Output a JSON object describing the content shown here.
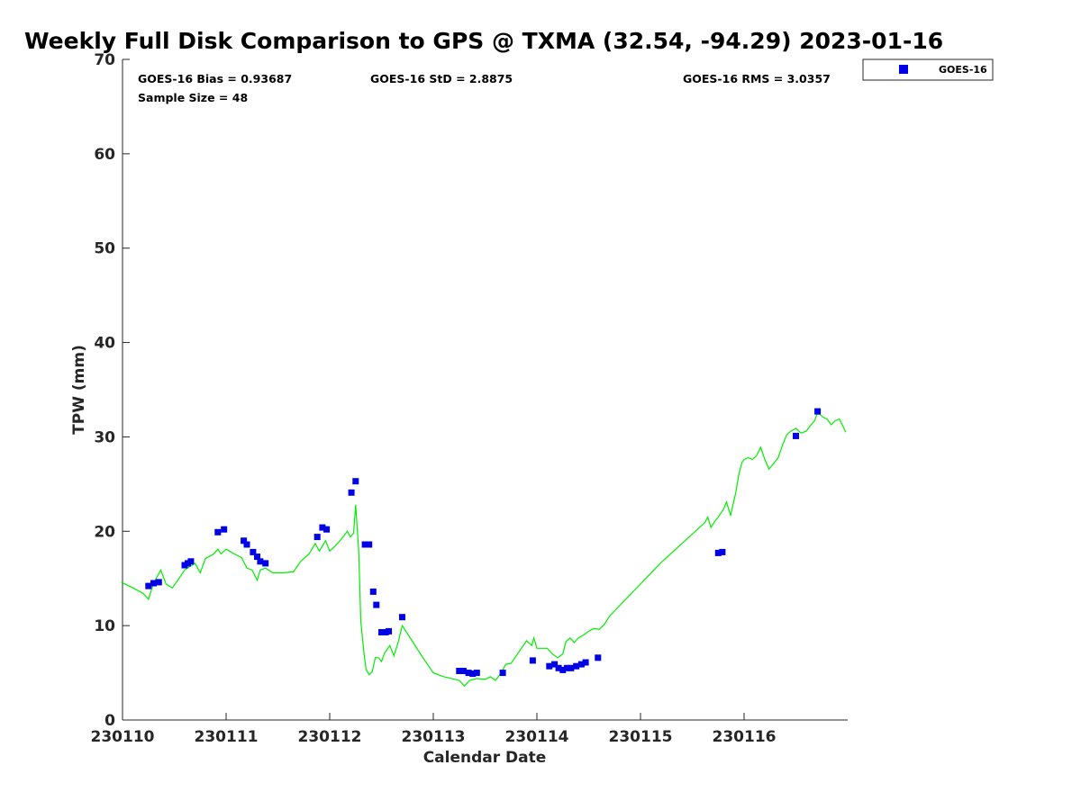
{
  "chart_data": {
    "type": "scatter",
    "title": "Weekly Full Disk Comparison to GPS @ TXMA (32.54, -94.29) 2023-01-16",
    "xlabel": "Calendar Date",
    "ylabel": "TPW (mm)",
    "xlim": [
      230110,
      230117
    ],
    "ylim": [
      0,
      70
    ],
    "x_ticks": [
      230110,
      230111,
      230112,
      230113,
      230114,
      230115,
      230116
    ],
    "x_tick_labels": [
      "230110",
      "230111",
      "230112",
      "230113",
      "230114",
      "230115",
      "230116"
    ],
    "y_ticks": [
      0,
      10,
      20,
      30,
      40,
      50,
      60,
      70
    ],
    "y_tick_labels": [
      "0",
      "10",
      "20",
      "30",
      "40",
      "50",
      "60",
      "70"
    ],
    "grid": false,
    "legend_position": "top-right outside",
    "stats": {
      "bias": "GOES-16 Bias = 0.93687",
      "std": "GOES-16 StD = 2.8875",
      "rms": "GOES-16 RMS = 3.0357",
      "sample": "Sample Size = 48"
    },
    "series": [
      {
        "name": "GOES-16",
        "kind": "points",
        "color": "#0000e6",
        "x": [
          230110.25,
          230110.3,
          230110.35,
          230110.6,
          230110.63,
          230110.66,
          230110.92,
          230110.98,
          230111.17,
          230111.2,
          230111.26,
          230111.3,
          230111.33,
          230111.38,
          230111.88,
          230111.93,
          230111.97,
          230112.21,
          230112.25,
          230112.34,
          230112.38,
          230112.42,
          230112.45,
          230112.5,
          230112.54,
          230112.57,
          230112.7,
          230113.25,
          230113.29,
          230113.34,
          230113.38,
          230113.42,
          230113.67,
          230113.96,
          230114.12,
          230114.17,
          230114.21,
          230114.25,
          230114.29,
          230114.33,
          230114.38,
          230114.43,
          230114.47,
          230114.59,
          230115.75,
          230115.79,
          230116.5,
          230116.71
        ],
        "y": [
          14.2,
          14.5,
          14.6,
          16.4,
          16.6,
          16.8,
          19.9,
          20.2,
          19.0,
          18.6,
          17.8,
          17.3,
          16.8,
          16.6,
          19.4,
          20.4,
          20.2,
          24.1,
          25.3,
          18.6,
          18.6,
          13.6,
          12.2,
          9.3,
          9.3,
          9.4,
          10.9,
          5.2,
          5.2,
          5.0,
          4.9,
          5.0,
          5.0,
          6.3,
          5.7,
          5.9,
          5.5,
          5.3,
          5.5,
          5.5,
          5.7,
          5.9,
          6.1,
          6.6,
          17.7,
          17.8,
          30.1,
          32.7
        ]
      },
      {
        "name": "",
        "kind": "line",
        "color": "#00ee00",
        "x": [
          230109.99,
          230110.1,
          230110.2,
          230110.25,
          230110.3,
          230110.37,
          230110.42,
          230110.48,
          230110.52,
          230110.6,
          230110.7,
          230110.75,
          230110.8,
          230110.88,
          230110.92,
          230110.95,
          230110.98,
          230111.0,
          230111.08,
          230111.15,
          230111.2,
          230111.25,
          230111.3,
          230111.33,
          230111.38,
          230111.45,
          230111.55,
          230111.65,
          230111.72,
          230111.8,
          230111.86,
          230111.9,
          230111.96,
          230112.0,
          230112.05,
          230112.1,
          230112.17,
          230112.2,
          230112.23,
          230112.25,
          230112.28,
          230112.3,
          230112.33,
          230112.35,
          230112.38,
          230112.41,
          230112.44,
          230112.47,
          230112.5,
          230112.53,
          230112.58,
          230112.62,
          230112.66,
          230112.7,
          230112.8,
          230112.9,
          230113.0,
          230113.1,
          230113.25,
          230113.3,
          230113.35,
          230113.42,
          230113.5,
          230113.55,
          230113.6,
          230113.65,
          230113.7,
          230113.75,
          230113.85,
          230113.9,
          230113.95,
          230113.97,
          230114.0,
          230114.1,
          230114.15,
          230114.2,
          230114.25,
          230114.28,
          230114.32,
          230114.36,
          230114.4,
          230114.45,
          230114.5,
          230114.55,
          230114.6,
          230114.65,
          230114.7,
          230115.2,
          230115.62,
          230115.65,
          230115.68,
          230115.72,
          230115.75,
          230115.78,
          230115.8,
          230115.83,
          230115.87,
          230115.92,
          230115.95,
          230115.98,
          230116.0,
          230116.04,
          230116.08,
          230116.12,
          230116.16,
          230116.2,
          230116.24,
          230116.28,
          230116.33,
          230116.37,
          230116.41,
          230116.45,
          230116.5,
          230116.55,
          230116.6,
          230116.64,
          230116.68,
          230116.71,
          230116.76,
          230116.8,
          230116.84,
          230116.88,
          230116.92,
          230116.96,
          230116.98
        ],
        "y": [
          14.6,
          14.0,
          13.4,
          12.8,
          14.5,
          15.9,
          14.4,
          14.0,
          14.6,
          15.9,
          16.6,
          15.6,
          17.1,
          17.6,
          18.1,
          17.6,
          17.9,
          18.1,
          17.6,
          17.2,
          16.1,
          15.9,
          14.8,
          15.9,
          16.1,
          15.6,
          15.6,
          15.7,
          16.8,
          17.6,
          18.7,
          17.9,
          19.0,
          17.9,
          18.4,
          19.0,
          20.0,
          19.4,
          19.8,
          22.8,
          17.9,
          10.5,
          7.2,
          5.4,
          4.8,
          5.1,
          6.6,
          6.6,
          6.2,
          7.1,
          7.9,
          6.8,
          8.2,
          10.0,
          8.3,
          6.6,
          5.0,
          4.6,
          4.2,
          3.6,
          4.2,
          4.4,
          4.3,
          4.6,
          4.2,
          4.9,
          5.9,
          6.0,
          7.6,
          8.4,
          7.9,
          8.7,
          7.6,
          7.6,
          7.0,
          6.6,
          7.0,
          8.3,
          8.7,
          8.2,
          8.7,
          9.0,
          9.4,
          9.7,
          9.6,
          10.1,
          11.0,
          16.7,
          20.9,
          21.5,
          20.4,
          21.1,
          21.5,
          22.0,
          22.3,
          23.1,
          21.7,
          24.1,
          26.1,
          27.3,
          27.6,
          27.8,
          27.6,
          28.0,
          28.9,
          27.6,
          26.6,
          27.1,
          27.8,
          29.1,
          30.2,
          30.6,
          30.9,
          30.4,
          30.6,
          31.2,
          31.7,
          32.6,
          32.1,
          31.9,
          31.3,
          31.7,
          31.9,
          31.0,
          30.5
        ]
      }
    ]
  }
}
